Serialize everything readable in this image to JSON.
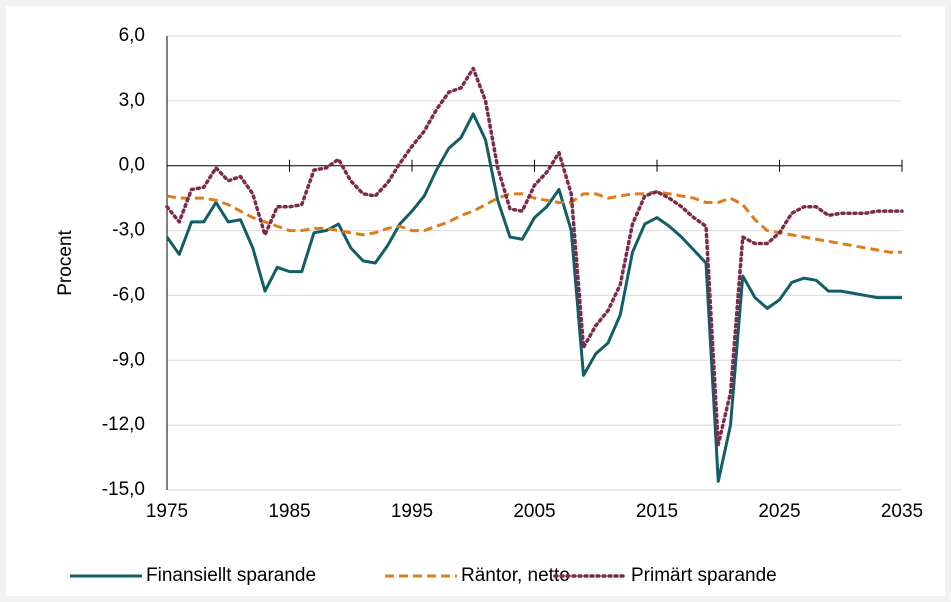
{
  "chart_data": {
    "type": "line",
    "ylabel": "Procent",
    "x": [
      1975,
      1976,
      1977,
      1978,
      1979,
      1980,
      1981,
      1982,
      1983,
      1984,
      1985,
      1986,
      1987,
      1988,
      1989,
      1990,
      1991,
      1992,
      1993,
      1994,
      1995,
      1996,
      1997,
      1998,
      1999,
      2000,
      2001,
      2002,
      2003,
      2004,
      2005,
      2006,
      2007,
      2008,
      2009,
      2010,
      2011,
      2012,
      2013,
      2014,
      2015,
      2016,
      2017,
      2018,
      2019,
      2020,
      2021,
      2022,
      2023,
      2024,
      2025,
      2026,
      2027,
      2028,
      2029,
      2030,
      2031,
      2032,
      2033,
      2034,
      2035
    ],
    "series": [
      {
        "name": "Finansiellt sparande",
        "color": "#135e66",
        "style": "solid",
        "values": [
          -3.3,
          -4.1,
          -2.6,
          -2.6,
          -1.7,
          -2.6,
          -2.5,
          -3.8,
          -5.8,
          -4.7,
          -4.9,
          -4.9,
          -3.1,
          -3.0,
          -2.7,
          -3.8,
          -4.4,
          -4.5,
          -3.7,
          -2.7,
          -2.1,
          -1.4,
          -0.2,
          0.8,
          1.3,
          2.4,
          1.2,
          -1.6,
          -3.3,
          -3.4,
          -2.4,
          -1.9,
          -1.1,
          -3.0,
          -9.7,
          -8.7,
          -8.2,
          -6.9,
          -4.0,
          -2.7,
          -2.4,
          -2.8,
          -3.3,
          -3.9,
          -4.5,
          -14.6,
          -12.0,
          -5.1,
          -6.1,
          -6.6,
          -6.2,
          -5.4,
          -5.2,
          -5.3,
          -5.8,
          -5.8,
          -5.9,
          -6.0,
          -6.1,
          -6.1,
          -6.1
        ]
      },
      {
        "name": "Räntor, netto",
        "color": "#e07b1a",
        "style": "dashed",
        "values": [
          -1.4,
          -1.5,
          -1.5,
          -1.5,
          -1.6,
          -1.8,
          -2.1,
          -2.4,
          -2.6,
          -2.8,
          -3.0,
          -3.0,
          -2.9,
          -2.9,
          -3.0,
          -3.1,
          -3.2,
          -3.1,
          -2.9,
          -2.8,
          -3.0,
          -3.0,
          -2.8,
          -2.6,
          -2.3,
          -2.1,
          -1.8,
          -1.5,
          -1.3,
          -1.3,
          -1.5,
          -1.6,
          -1.7,
          -1.7,
          -1.3,
          -1.3,
          -1.5,
          -1.4,
          -1.3,
          -1.3,
          -1.2,
          -1.3,
          -1.4,
          -1.5,
          -1.7,
          -1.7,
          -1.5,
          -1.8,
          -2.5,
          -3.0,
          -3.1,
          -3.2,
          -3.3,
          -3.4,
          -3.5,
          -3.6,
          -3.7,
          -3.8,
          -3.9,
          -4.0,
          -4.0
        ]
      },
      {
        "name": "Primärt sparande",
        "color": "#7d2a4c",
        "style": "dotted",
        "values": [
          -1.9,
          -2.6,
          -1.1,
          -1.0,
          -0.1,
          -0.7,
          -0.5,
          -1.3,
          -3.2,
          -1.9,
          -1.9,
          -1.8,
          -0.2,
          -0.1,
          0.3,
          -0.7,
          -1.3,
          -1.4,
          -0.8,
          0.1,
          0.9,
          1.6,
          2.6,
          3.4,
          3.6,
          4.5,
          3.0,
          -0.1,
          -2.0,
          -2.1,
          -0.9,
          -0.3,
          0.6,
          -1.3,
          -8.4,
          -7.4,
          -6.7,
          -5.5,
          -2.7,
          -1.4,
          -1.2,
          -1.5,
          -1.9,
          -2.4,
          -2.8,
          -12.9,
          -10.5,
          -3.3,
          -3.6,
          -3.6,
          -3.1,
          -2.2,
          -1.9,
          -1.9,
          -2.3,
          -2.2,
          -2.2,
          -2.2,
          -2.1,
          -2.1,
          -2.1
        ]
      }
    ],
    "xlim": [
      1975,
      2035
    ],
    "xticks": [
      1975,
      1985,
      1995,
      2005,
      2015,
      2025,
      2035
    ],
    "ylim": [
      -15,
      6
    ],
    "yticks": [
      {
        "value": -15,
        "label": "-15,0"
      },
      {
        "value": -12,
        "label": "-12,0"
      },
      {
        "value": -9,
        "label": "-9,0"
      },
      {
        "value": -6,
        "label": "-6,0"
      },
      {
        "value": -3,
        "label": "-3,0"
      },
      {
        "value": 0,
        "label": "0,0"
      },
      {
        "value": 3,
        "label": "3,0"
      },
      {
        "value": 6,
        "label": "6,0"
      }
    ],
    "grid": true,
    "legend": "bottom"
  }
}
